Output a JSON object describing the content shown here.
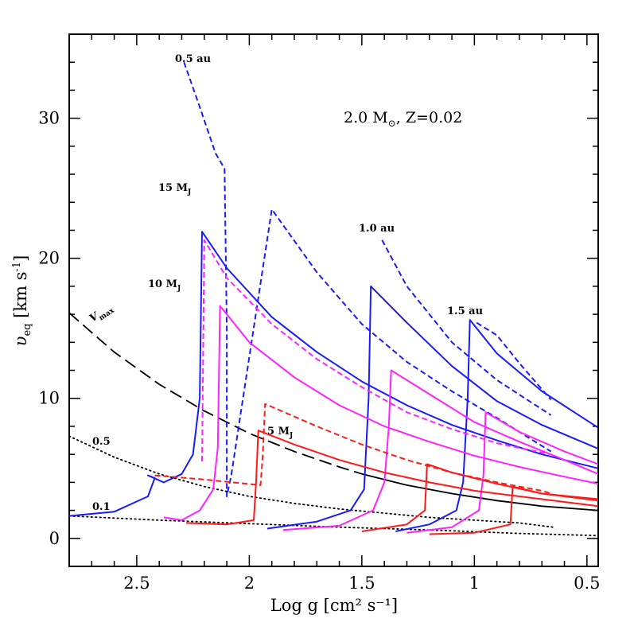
{
  "chart_data": {
    "type": "line",
    "title": "2.0 M⊙, Z=0.02",
    "title_parts": {
      "mass": "2.0 M",
      "sun": "⊙",
      "rest": ", Z=0.02"
    },
    "xlabel": "Log g [cm² s⁻¹]",
    "ylabel": "υeq [km s⁻¹]",
    "ylabel_parts": {
      "main": "υ",
      "sub": "eq",
      "units": " [km s",
      "exp": "-1",
      "close": "]"
    },
    "xlim": [
      2.8,
      0.45
    ],
    "ylim": [
      -2,
      36
    ],
    "x_ticks": [
      2.5,
      2,
      1.5,
      1,
      0.5
    ],
    "x_tick_labels": [
      "2.5",
      "2",
      "1.5",
      "1",
      "0.5"
    ],
    "y_ticks": [
      0,
      10,
      20,
      30
    ],
    "y_tick_labels": [
      "0",
      "10",
      "20",
      "30"
    ],
    "annotations": {
      "orbit_05": "0.5 au",
      "orbit_10": "1.0 au",
      "orbit_15": "1.5 au",
      "mass_15": "15 M",
      "mass_10": "10 M",
      "mass_5": "5 M",
      "mass_sub": "J",
      "vmax": "V",
      "vmax_sub": "max",
      "rot_05": "0.5",
      "rot_01": "0.1"
    },
    "colors": {
      "blue": "#1a1aff",
      "magenta": "#ff22ff",
      "red": "#ff1a1a",
      "black": "#000000"
    },
    "series": [
      {
        "name": "v_max",
        "color": "black",
        "style": "longdash",
        "x": [
          2.8,
          2.6,
          2.4,
          2.2,
          2.0,
          1.8,
          1.6,
          1.5
        ],
        "y": [
          16.1,
          13.3,
          11.0,
          9.1,
          7.5,
          6.2,
          5.1,
          4.6
        ]
      },
      {
        "name": "v_max_ext",
        "color": "black",
        "style": "solid",
        "x": [
          1.5,
          1.3,
          1.1,
          0.9,
          0.7,
          0.45
        ],
        "y": [
          4.6,
          3.8,
          3.2,
          2.7,
          2.3,
          2.0
        ]
      },
      {
        "name": "rot_0.5",
        "color": "black",
        "style": "dotted",
        "x": [
          2.8,
          2.6,
          2.4,
          2.2,
          2.0,
          1.8,
          1.6,
          1.4,
          1.2,
          1.0,
          0.8,
          0.65
        ],
        "y": [
          7.3,
          5.8,
          4.6,
          3.7,
          3.0,
          2.5,
          2.1,
          1.8,
          1.5,
          1.3,
          1.1,
          0.8
        ]
      },
      {
        "name": "rot_0.1",
        "color": "black",
        "style": "dotted",
        "x": [
          2.8,
          2.4,
          2.0,
          1.6,
          1.2,
          0.8,
          0.45
        ],
        "y": [
          1.6,
          1.3,
          1.05,
          0.8,
          0.6,
          0.35,
          0.2
        ]
      },
      {
        "name": "15MJ_0.5au_solid",
        "color": "blue",
        "style": "solid",
        "x": [
          2.8,
          2.6,
          2.45,
          2.42,
          2.45,
          2.38,
          2.3,
          2.25,
          2.22,
          2.21,
          2.1,
          1.9,
          1.7,
          1.5,
          1.3,
          1.1,
          0.9,
          0.7,
          0.45
        ],
        "y": [
          1.6,
          1.9,
          3.0,
          4.3,
          4.5,
          4.0,
          4.6,
          6.0,
          10.0,
          21.9,
          19.3,
          15.8,
          13.3,
          11.2,
          9.5,
          8.1,
          7.0,
          6.0,
          5.0
        ]
      },
      {
        "name": "15MJ_0.5au_dashed",
        "color": "blue",
        "style": "dashed",
        "x": [
          2.29,
          2.22,
          2.15,
          2.11,
          2.1,
          2.1,
          2.08,
          1.9,
          1.7,
          1.5,
          1.3,
          1.1,
          0.9,
          0.66
        ],
        "y": [
          34.0,
          30.8,
          27.5,
          26.4,
          15.0,
          3.0,
          4.5,
          23.5,
          19.0,
          15.3,
          12.6,
          10.5,
          8.6,
          6.2
        ]
      },
      {
        "name": "15MJ_1.0au_solid",
        "color": "blue",
        "style": "solid",
        "x": [
          1.92,
          1.7,
          1.55,
          1.49,
          1.47,
          1.46,
          1.3,
          1.1,
          0.9,
          0.7,
          0.45
        ],
        "y": [
          0.7,
          1.2,
          2.0,
          3.5,
          10.0,
          18.0,
          15.4,
          12.3,
          9.8,
          8.1,
          6.4
        ]
      },
      {
        "name": "15MJ_1.0au_dashed",
        "color": "blue",
        "style": "dashed",
        "x": [
          1.41,
          1.3,
          1.1,
          0.9,
          0.66
        ],
        "y": [
          21.3,
          18.0,
          14.0,
          11.3,
          8.8
        ]
      },
      {
        "name": "15MJ_1.5au_solid",
        "color": "blue",
        "style": "solid",
        "x": [
          1.35,
          1.2,
          1.08,
          1.05,
          1.03,
          1.02,
          0.9,
          0.7,
          0.45
        ],
        "y": [
          0.5,
          1.0,
          2.0,
          4.0,
          10.0,
          15.6,
          13.2,
          10.5,
          7.9
        ]
      },
      {
        "name": "15MJ_1.5au_dashed",
        "color": "blue",
        "style": "dashed",
        "x": [
          0.99,
          0.9,
          0.8,
          0.66
        ],
        "y": [
          15.4,
          14.5,
          12.5,
          9.9
        ]
      },
      {
        "name": "10MJ_0.5au_solid",
        "color": "magenta",
        "style": "solid",
        "x": [
          2.38,
          2.3,
          2.22,
          2.16,
          2.14,
          2.13,
          2.0,
          1.8,
          1.6,
          1.4,
          1.2,
          1.0,
          0.8,
          0.6,
          0.45
        ],
        "y": [
          1.5,
          1.3,
          2.0,
          3.5,
          6.5,
          16.6,
          14.0,
          11.5,
          9.5,
          8.0,
          6.9,
          5.9,
          5.1,
          4.4,
          3.9
        ]
      },
      {
        "name": "10MJ_0.5au_dashed",
        "color": "magenta",
        "style": "dashed",
        "x": [
          2.21,
          2.2,
          2.1,
          1.9,
          1.7,
          1.5,
          1.3,
          1.1,
          0.9,
          0.66
        ],
        "y": [
          5.5,
          21.3,
          18.6,
          15.3,
          12.8,
          10.8,
          9.0,
          7.8,
          6.8,
          6.0
        ]
      },
      {
        "name": "10MJ_1.0au_solid",
        "color": "magenta",
        "style": "solid",
        "x": [
          1.85,
          1.6,
          1.45,
          1.4,
          1.38,
          1.37,
          1.2,
          1.0,
          0.8,
          0.6,
          0.45
        ],
        "y": [
          0.6,
          0.9,
          2.0,
          4.0,
          8.0,
          12.0,
          10.3,
          8.3,
          6.9,
          5.6,
          4.6
        ]
      },
      {
        "name": "10MJ_1.5au_solid",
        "color": "magenta",
        "style": "solid",
        "x": [
          1.3,
          1.1,
          0.98,
          0.96,
          0.95,
          0.8,
          0.6,
          0.45
        ],
        "y": [
          0.4,
          0.8,
          2.0,
          4.5,
          9.0,
          7.6,
          6.2,
          5.3
        ]
      },
      {
        "name": "5MJ_0.5au_solid",
        "color": "red",
        "style": "solid",
        "x": [
          2.28,
          2.1,
          1.98,
          1.97,
          1.96,
          1.8,
          1.6,
          1.4,
          1.2,
          1.0,
          0.8,
          0.6,
          0.45
        ],
        "y": [
          1.1,
          1.0,
          1.3,
          4.0,
          7.7,
          6.7,
          5.6,
          4.7,
          4.0,
          3.4,
          3.0,
          2.6,
          2.3
        ]
      },
      {
        "name": "5MJ_0.5au_dashed",
        "color": "red",
        "style": "dashed",
        "x": [
          2.42,
          2.2,
          1.95,
          1.94,
          1.93,
          1.7,
          1.5,
          1.3,
          1.1,
          0.9,
          0.7,
          0.66
        ],
        "y": [
          4.5,
          4.2,
          3.8,
          6.0,
          9.6,
          8.0,
          6.7,
          5.6,
          4.7,
          4.0,
          3.4,
          3.2
        ]
      },
      {
        "name": "5MJ_1.0au_solid",
        "color": "red",
        "style": "solid",
        "x": [
          1.5,
          1.3,
          1.22,
          1.21,
          1.1,
          0.9,
          0.7,
          0.45
        ],
        "y": [
          0.5,
          1.0,
          2.0,
          5.3,
          4.7,
          3.9,
          3.2,
          2.7
        ]
      },
      {
        "name": "5MJ_1.5au_solid",
        "color": "red",
        "style": "solid",
        "x": [
          1.2,
          1.0,
          0.84,
          0.83,
          0.7,
          0.45
        ],
        "y": [
          0.3,
          0.4,
          1.0,
          3.7,
          3.2,
          2.8
        ]
      }
    ]
  }
}
